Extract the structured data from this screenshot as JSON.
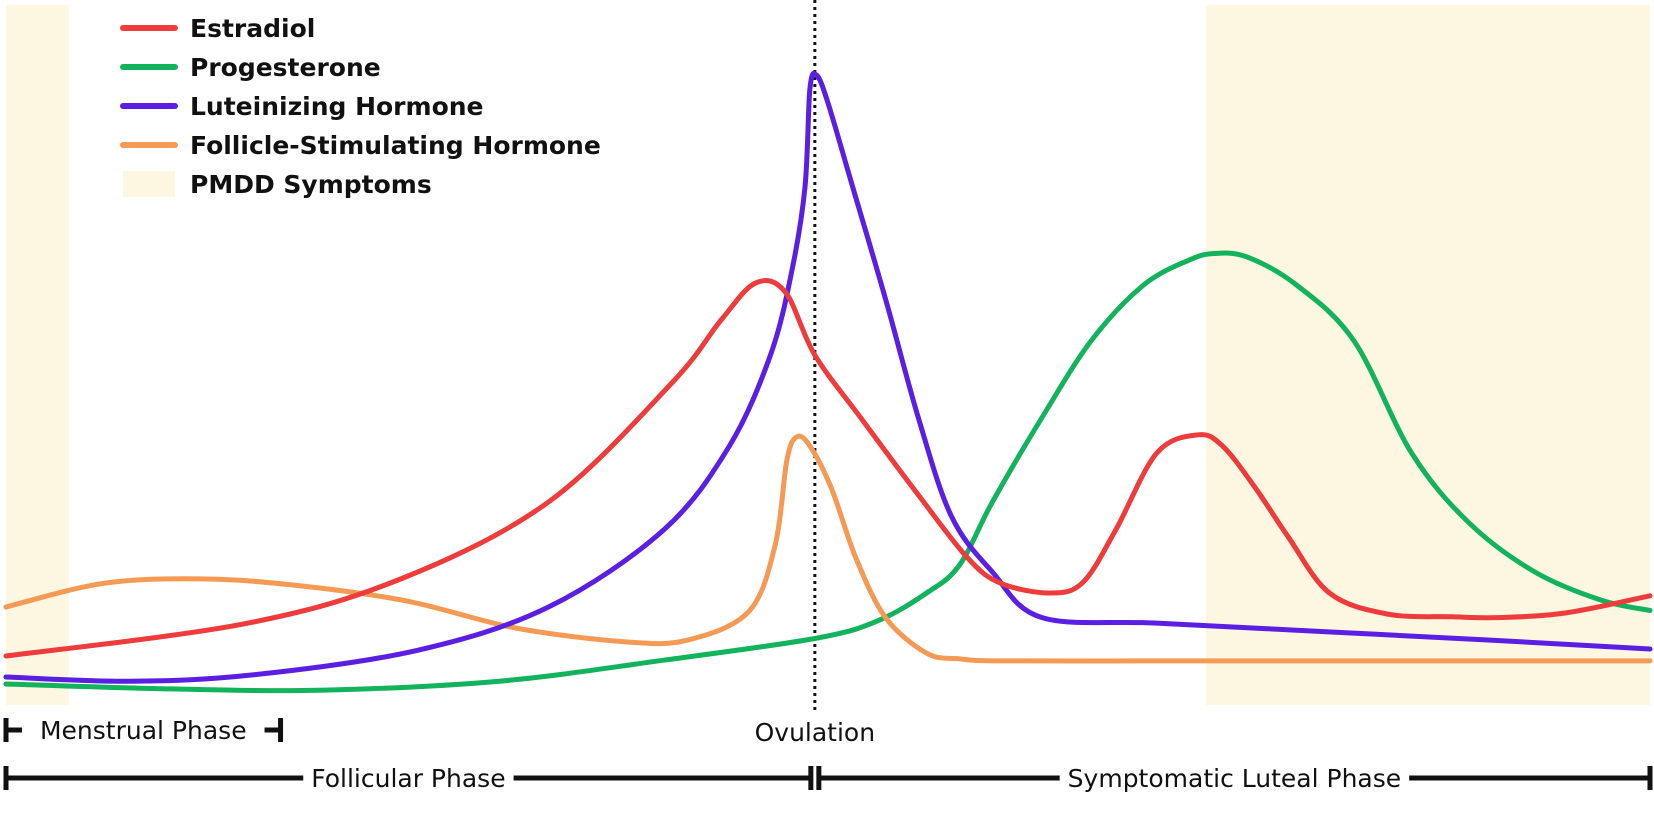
{
  "chart_data": {
    "type": "line",
    "title": "",
    "xlabel": "",
    "ylabel": "",
    "x_range": [
      0,
      100
    ],
    "y_range": [
      0,
      100
    ],
    "grid": false,
    "legend_position": "top-left",
    "legend": [
      {
        "key": "estradiol",
        "label": "Estradiol",
        "color": "#ee3b3b",
        "kind": "line"
      },
      {
        "key": "progesterone",
        "label": "Progesterone",
        "color": "#13b35e",
        "kind": "line"
      },
      {
        "key": "lh",
        "label": "Luteinizing Hormone",
        "color": "#5b1fe3",
        "kind": "line"
      },
      {
        "key": "fsh",
        "label": "Follicle-Stimulating Hormone",
        "color": "#f59a55",
        "kind": "line"
      },
      {
        "key": "pmdd",
        "label": "PMDD Symptoms",
        "color": "#fdf6e0",
        "kind": "band"
      }
    ],
    "series": [
      {
        "key": "estradiol",
        "color": "#ee3b3b",
        "points": [
          [
            0,
            7
          ],
          [
            14.5,
            11.6
          ],
          [
            24,
            18
          ],
          [
            33,
            29
          ],
          [
            40.5,
            46
          ],
          [
            43.5,
            55
          ],
          [
            45.6,
            60.3
          ],
          [
            47.4,
            59
          ],
          [
            49.2,
            50
          ],
          [
            52,
            41
          ],
          [
            55.5,
            30
          ],
          [
            58.5,
            21
          ],
          [
            60.5,
            17.4
          ],
          [
            63.5,
            16
          ],
          [
            65.5,
            17.5
          ],
          [
            67.5,
            25
          ],
          [
            70,
            36
          ],
          [
            72.5,
            38.6
          ],
          [
            74,
            37
          ],
          [
            76,
            31
          ],
          [
            78,
            24
          ],
          [
            80.5,
            16
          ],
          [
            84,
            13
          ],
          [
            88,
            12.6
          ],
          [
            91,
            12.5
          ],
          [
            95,
            13.2
          ],
          [
            100,
            15.6
          ]
        ]
      },
      {
        "key": "progesterone",
        "color": "#13b35e",
        "points": [
          [
            0,
            3
          ],
          [
            10,
            2.3
          ],
          [
            19,
            2.1
          ],
          [
            30,
            3.4
          ],
          [
            40,
            6.4
          ],
          [
            49.2,
            9.5
          ],
          [
            53,
            12
          ],
          [
            56,
            16
          ],
          [
            58,
            20
          ],
          [
            60,
            29
          ],
          [
            63,
            41
          ],
          [
            66,
            52
          ],
          [
            69.2,
            60
          ],
          [
            72,
            63.6
          ],
          [
            73.5,
            64.5
          ],
          [
            75.5,
            64
          ],
          [
            78.5,
            60
          ],
          [
            82,
            52
          ],
          [
            85.5,
            36
          ],
          [
            89,
            26
          ],
          [
            93,
            19
          ],
          [
            97,
            15
          ],
          [
            100,
            13.5
          ]
        ]
      },
      {
        "key": "lh",
        "color": "#5b1fe3",
        "points": [
          [
            0,
            4
          ],
          [
            7.5,
            3.4
          ],
          [
            15,
            4.3
          ],
          [
            25,
            7.8
          ],
          [
            33,
            14
          ],
          [
            40,
            25
          ],
          [
            44,
            37
          ],
          [
            46.5,
            50
          ],
          [
            47.8,
            62
          ],
          [
            48.6,
            74
          ],
          [
            48.9,
            88
          ],
          [
            49.3,
            90
          ],
          [
            50,
            86
          ],
          [
            51.5,
            74
          ],
          [
            53.5,
            58
          ],
          [
            55.5,
            41
          ],
          [
            57.5,
            27
          ],
          [
            60,
            19
          ],
          [
            63,
            12.5
          ],
          [
            70,
            11.7
          ],
          [
            80,
            10.5
          ],
          [
            90,
            9.3
          ],
          [
            100,
            8
          ]
        ]
      },
      {
        "key": "fsh",
        "color": "#f59a55",
        "points": [
          [
            0,
            14
          ],
          [
            6,
            17.4
          ],
          [
            12.2,
            18
          ],
          [
            18,
            17
          ],
          [
            24.5,
            14.8
          ],
          [
            31,
            11
          ],
          [
            37.8,
            9
          ],
          [
            41.5,
            9.3
          ],
          [
            45.2,
            13.4
          ],
          [
            46.8,
            23
          ],
          [
            47.5,
            35
          ],
          [
            48.1,
            38.3
          ],
          [
            48.9,
            37
          ],
          [
            50.2,
            31
          ],
          [
            51.7,
            21
          ],
          [
            53.5,
            12.5
          ],
          [
            56,
            7.4
          ],
          [
            58,
            6.6
          ],
          [
            60.4,
            6.3
          ],
          [
            70,
            6.3
          ],
          [
            80,
            6.3
          ],
          [
            90,
            6.3
          ],
          [
            100,
            6.3
          ]
        ]
      }
    ],
    "bands": [
      {
        "key": "pmdd",
        "from": 0,
        "to": 3.8
      },
      {
        "key": "pmdd",
        "from": 73,
        "to": 100
      }
    ],
    "markers": [
      {
        "key": "ovulation",
        "x": 49.2,
        "label": "Ovulation",
        "style": "dotted"
      }
    ],
    "phases": [
      {
        "key": "menstrual",
        "label": "Menstrual Phase",
        "from": 0,
        "to": 16.7,
        "row": 1
      },
      {
        "key": "follicular",
        "label": "Follicular Phase",
        "from": 0,
        "to": 49.2,
        "row": 2
      },
      {
        "key": "luteal",
        "label": "Symptomatic Luteal Phase",
        "from": 49.2,
        "to": 100,
        "row": 2
      }
    ]
  }
}
